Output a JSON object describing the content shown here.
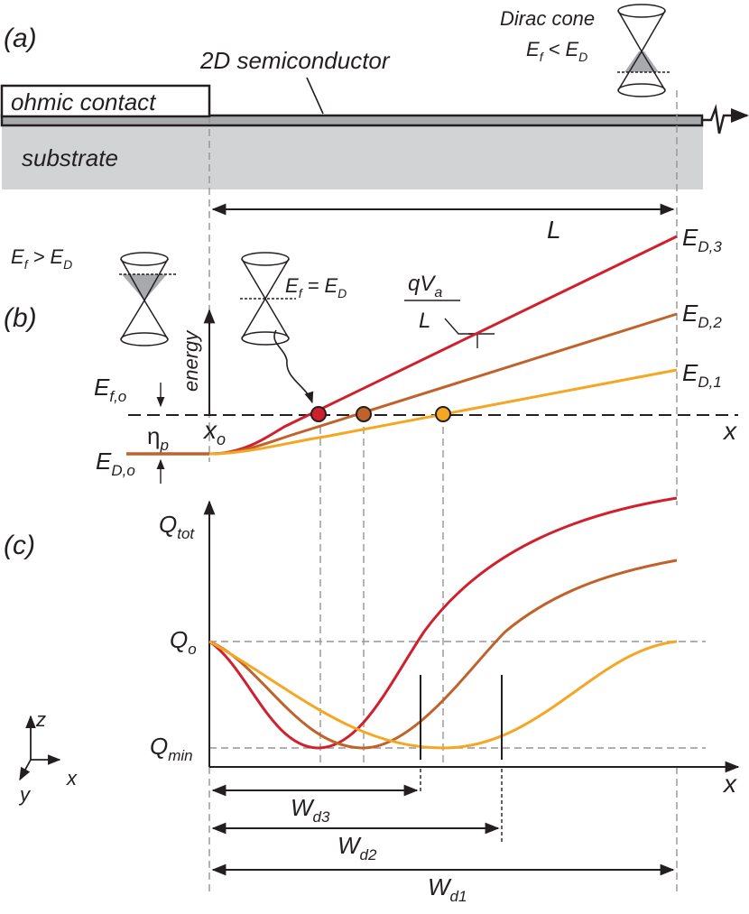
{
  "panel_a": {
    "label": "(a)",
    "semiconductor_label": "2D semiconductor",
    "contact_label": "ohmic contact",
    "substrate_label": "substrate",
    "dirac_label": "Dirac cone",
    "dirac_cond": {
      "a": "E",
      "asub": "f",
      "op": "<",
      "b": "E",
      "bsub": "D"
    },
    "length_label": "L"
  },
  "panel_b": {
    "label": "(b)",
    "cone_left_cond": {
      "a": "E",
      "asub": "f",
      "op": ">",
      "b": "E",
      "bsub": "D"
    },
    "cone_mid_cond": {
      "a": "E",
      "asub": "f",
      "op": "=",
      "b": "E",
      "bsub": "D"
    },
    "slope_num": "qV",
    "slope_num_sub": "a",
    "slope_den": "L",
    "energy_label": "energy",
    "ef_label": "E",
    "ef_sub": "f,o",
    "eta_label": "η",
    "eta_sub": "p",
    "xo_label": "x",
    "xo_sub": "o",
    "ed_label": "E",
    "ed_sub": "D,o",
    "x_axis_label": "x",
    "curve_labels": [
      {
        "main": "E",
        "sub": "D,3"
      },
      {
        "main": "E",
        "sub": "D,2"
      },
      {
        "main": "E",
        "sub": "D,1"
      }
    ]
  },
  "panel_c": {
    "label": "(c)",
    "y_axis_label": "Q",
    "y_axis_sub": "tot",
    "qo_label": "Q",
    "qo_sub": "o",
    "qmin_label": "Q",
    "qmin_sub": "min",
    "x_axis_label": "x",
    "widths": [
      {
        "main": "W",
        "sub": "d3"
      },
      {
        "main": "W",
        "sub": "d2"
      },
      {
        "main": "W",
        "sub": "d1"
      }
    ]
  },
  "axes_triad": {
    "z": "z",
    "x": "x",
    "y": "y"
  },
  "colors": {
    "curve_3": "#d0202e",
    "curve_2": "#c0622a",
    "curve_1": "#f5a623",
    "substrate": "#d1d3d4",
    "ink": "#231f20",
    "guide": "#939598"
  }
}
